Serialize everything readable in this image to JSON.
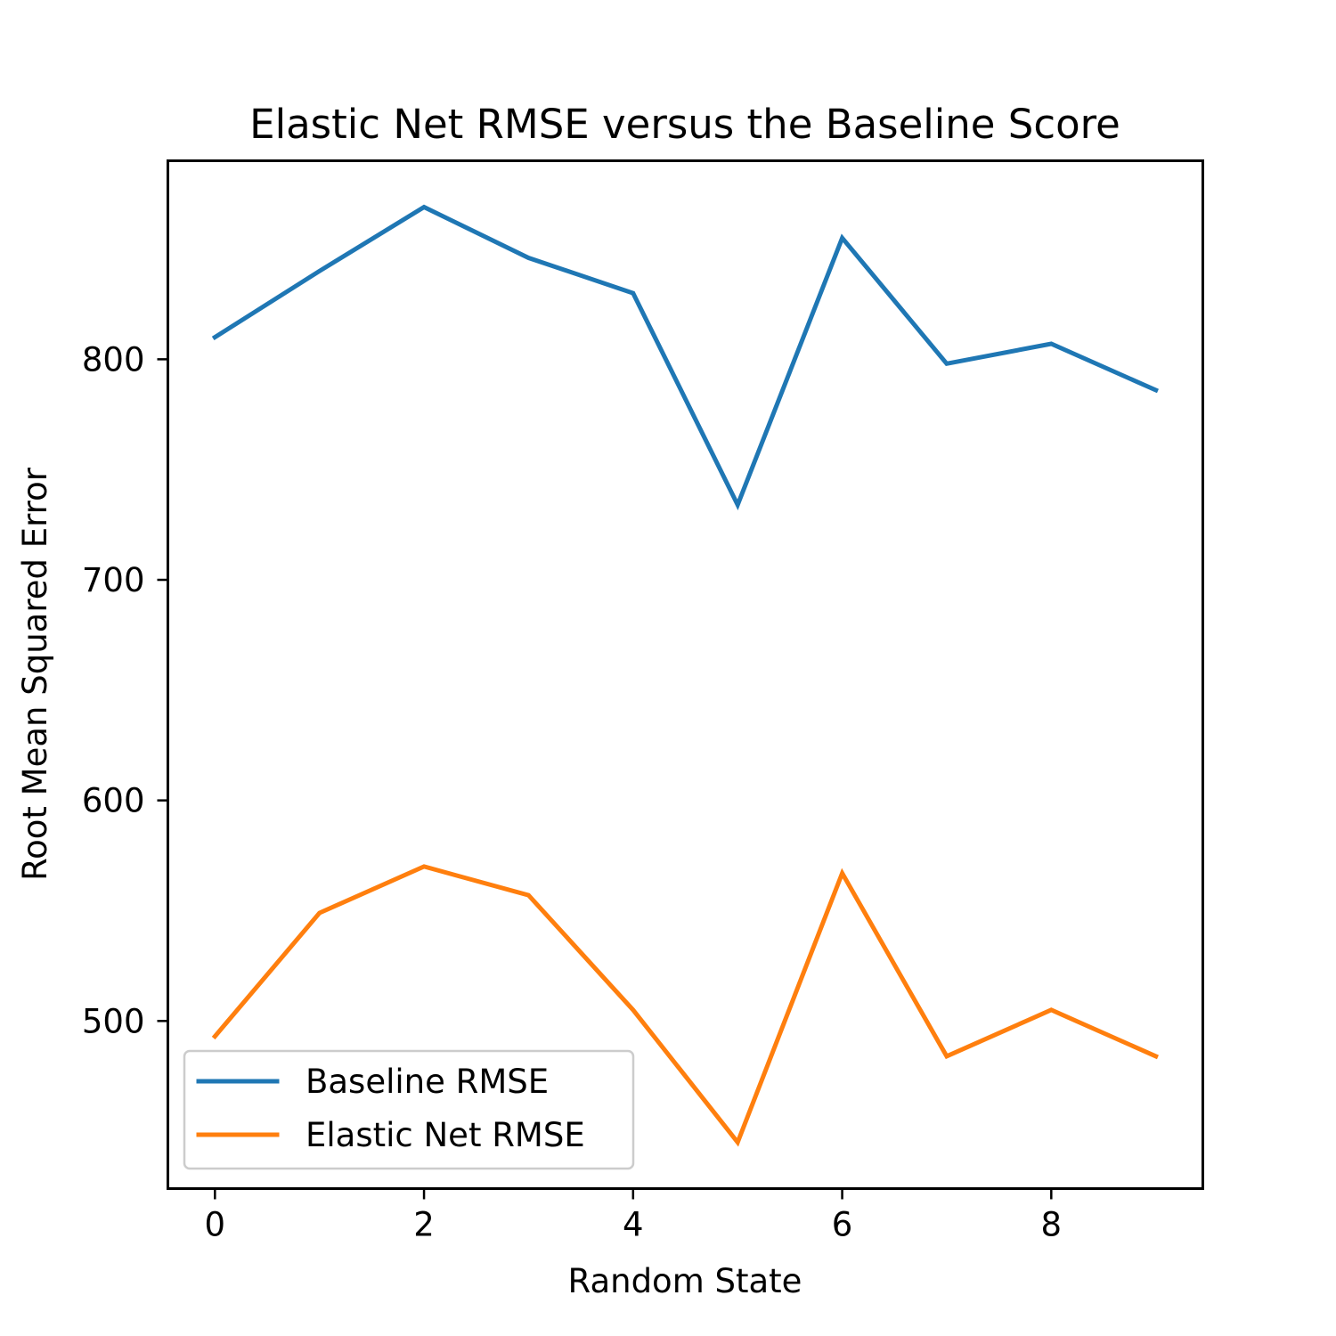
{
  "chart_data": {
    "type": "line",
    "title": "Elastic Net RMSE versus the Baseline Score",
    "xlabel": "Random State",
    "ylabel": "Root Mean Squared Error",
    "x": [
      0,
      1,
      2,
      3,
      4,
      5,
      6,
      7,
      8,
      9
    ],
    "xlim": [
      -0.45,
      9.45
    ],
    "ylim": [
      424,
      890
    ],
    "xticks": [
      0,
      2,
      4,
      6,
      8
    ],
    "yticks": [
      500,
      600,
      700,
      800
    ],
    "grid": false,
    "legend_position": "lower-left",
    "series": [
      {
        "name": "Baseline RMSE",
        "color": "#1f77b4",
        "values": [
          810,
          840,
          869,
          846,
          830,
          734,
          855,
          798,
          807,
          786
        ]
      },
      {
        "name": "Elastic Net RMSE",
        "color": "#ff7f0e",
        "values": [
          493,
          549,
          570,
          557,
          505,
          445,
          567,
          484,
          505,
          484
        ]
      }
    ]
  }
}
